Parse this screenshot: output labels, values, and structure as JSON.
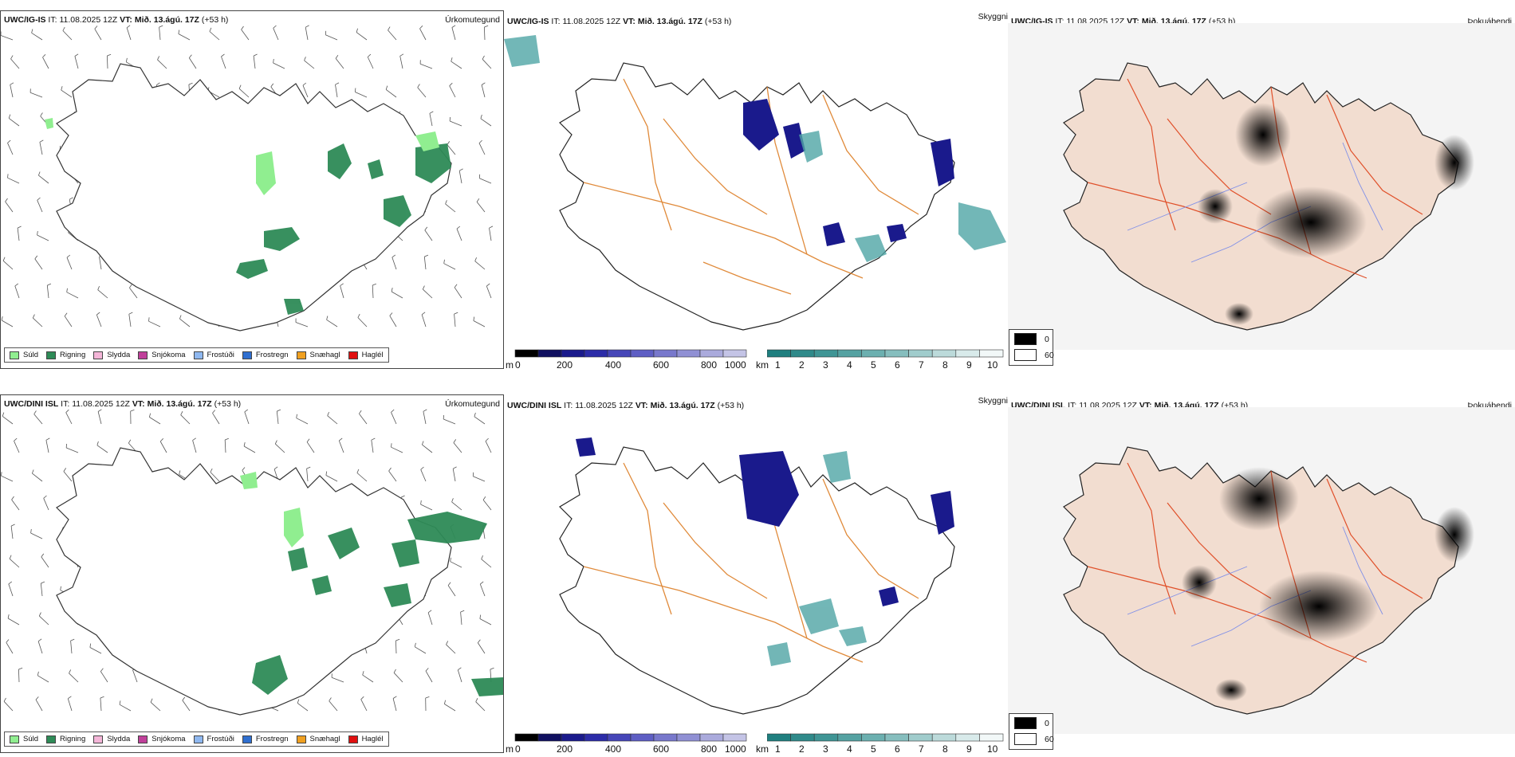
{
  "rows": [
    {
      "model": "UWC/IG-IS",
      "it_label": "IT:",
      "it_value": "11.08.2025 12Z",
      "vt_label": "VT:",
      "vt_value": "Mið. 13.ágú. 17Z",
      "lead": "(+53 h)"
    },
    {
      "model": "UWC/DINI ISL",
      "it_label": "IT:",
      "it_value": "11.08.2025 12Z",
      "vt_label": "VT:",
      "vt_value": "Mið. 13.ágú. 17Z",
      "lead": "(+53 h)"
    }
  ],
  "panels": {
    "precip_type": {
      "label": "Úrkomutegund",
      "legend": [
        {
          "label": "Súld",
          "color": "#90ee90"
        },
        {
          "label": "Rigning",
          "color": "#2e8b57"
        },
        {
          "label": "Slydda",
          "color": "#f4b6d8"
        },
        {
          "label": "Snjókoma",
          "color": "#c0409a"
        },
        {
          "label": "Frostúði",
          "color": "#8fb8f0"
        },
        {
          "label": "Frostregn",
          "color": "#2f6fd0"
        },
        {
          "label": "Snæhagl",
          "color": "#f0a020"
        },
        {
          "label": "Haglél",
          "color": "#e01010"
        }
      ]
    },
    "visibility": {
      "label": "Skyggni",
      "height_unit": "m",
      "height_ticks": [
        "0",
        "200",
        "400",
        "600",
        "800",
        "1000"
      ],
      "height_colors": [
        "#000000",
        "#101060",
        "#1a1a8c",
        "#2c2ca8",
        "#4646b8",
        "#5e5ec4",
        "#7878cc",
        "#9090d4",
        "#aaaadc",
        "#c4c4e6"
      ],
      "vis_unit": "km",
      "vis_ticks": [
        "1",
        "2",
        "3",
        "4",
        "5",
        "6",
        "7",
        "8",
        "9",
        "10"
      ],
      "vis_colors": [
        "#1f7f7f",
        "#2f8a8a",
        "#3f9595",
        "#55a2a2",
        "#6cb0b0",
        "#86bebe",
        "#a0cccc",
        "#bcdada",
        "#d8eaea",
        "#f2f8f8"
      ]
    },
    "cloud": {
      "label": "Þokuábendi",
      "legend": [
        {
          "label": "0",
          "color": "#000000"
        },
        {
          "label": "60",
          "color": "#ffffff"
        }
      ]
    }
  }
}
